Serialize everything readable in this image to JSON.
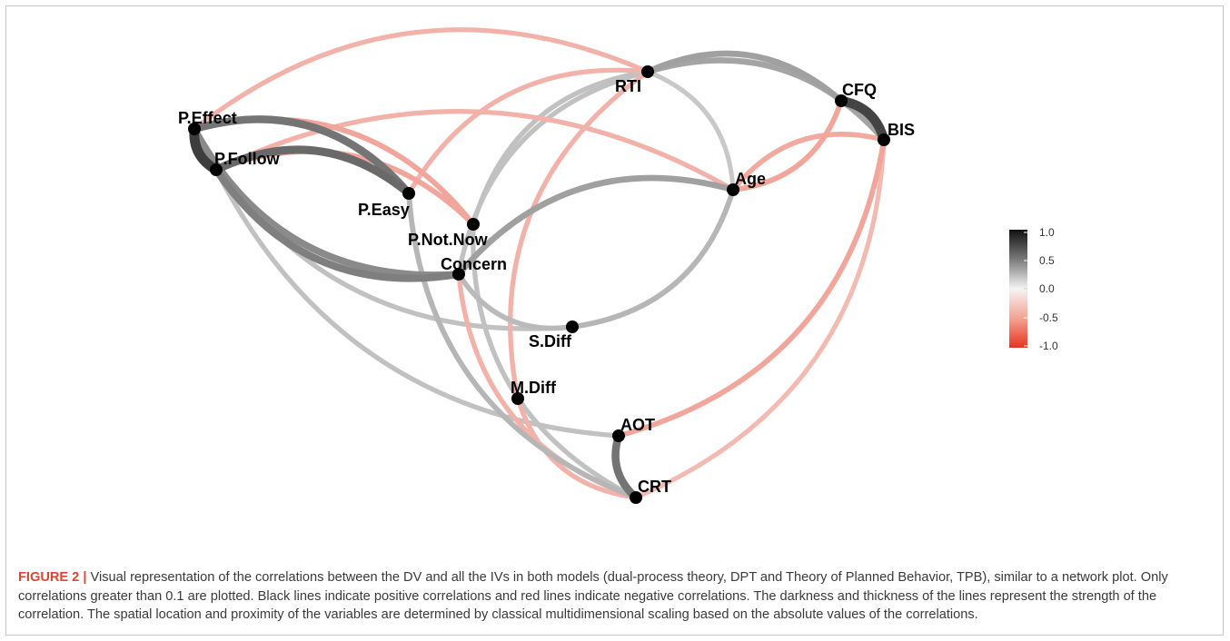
{
  "figure": {
    "label": "FIGURE 2",
    "separator": "|",
    "caption": "Visual representation of the correlations between the DV and all the IVs in both models (dual-process theory, DPT and Theory of Planned Behavior, TPB), similar to a network plot. Only correlations greater than 0.1 are plotted. Black lines indicate positive correlations and red lines indicate negative correlations. The darkness and thickness of the lines represent the strength of the correlation. The spatial location and proximity of the variables are determined by classical multidimensional scaling based on the absolute values of the correlations."
  },
  "nodes": [
    {
      "id": "P.Effect",
      "label": "P.Effect"
    },
    {
      "id": "P.Follow",
      "label": "P.Follow"
    },
    {
      "id": "P.Easy",
      "label": "P.Easy"
    },
    {
      "id": "P.Not.Now",
      "label": "P.Not.Now"
    },
    {
      "id": "Concern",
      "label": "Concern"
    },
    {
      "id": "S.Diff",
      "label": "S.Diff"
    },
    {
      "id": "M.Diff",
      "label": "M.Diff"
    },
    {
      "id": "AOT",
      "label": "AOT"
    },
    {
      "id": "CRT",
      "label": "CRT"
    },
    {
      "id": "RTI",
      "label": "RTI"
    },
    {
      "id": "CFQ",
      "label": "CFQ"
    },
    {
      "id": "BIS",
      "label": "BIS"
    },
    {
      "id": "Age",
      "label": "Age"
    }
  ],
  "edges": [
    {
      "a": "P.Effect",
      "b": "P.Follow",
      "r": 0.75
    },
    {
      "a": "CFQ",
      "b": "BIS",
      "r": 0.72
    },
    {
      "a": "AOT",
      "b": "CRT",
      "r": 0.5
    },
    {
      "a": "P.Effect",
      "b": "P.Easy",
      "r": 0.5
    },
    {
      "a": "P.Follow",
      "b": "P.Easy",
      "r": 0.55
    },
    {
      "a": "P.Effect",
      "b": "Concern",
      "r": 0.4
    },
    {
      "a": "P.Follow",
      "b": "Concern",
      "r": 0.45
    },
    {
      "a": "RTI",
      "b": "CFQ",
      "r": 0.3
    },
    {
      "a": "RTI",
      "b": "BIS",
      "r": 0.28
    },
    {
      "a": "Concern",
      "b": "Age",
      "r": 0.3
    },
    {
      "a": "S.Diff",
      "b": "Age",
      "r": 0.2
    },
    {
      "a": "P.Easy",
      "b": "CRT",
      "r": 0.2
    },
    {
      "a": "P.Follow",
      "b": "AOT",
      "r": 0.15
    },
    {
      "a": "P.Effect",
      "b": "S.Diff",
      "r": 0.15
    },
    {
      "a": "Concern",
      "b": "S.Diff",
      "r": 0.18
    },
    {
      "a": "Concern",
      "b": "RTI",
      "r": 0.15
    },
    {
      "a": "P.Not.Now",
      "b": "RTI",
      "r": 0.15
    },
    {
      "a": "P.Not.Now",
      "b": "CRT",
      "r": 0.15
    },
    {
      "a": "RTI",
      "b": "Age",
      "r": 0.12
    },
    {
      "a": "P.Effect",
      "b": "P.Not.Now",
      "r": -0.2
    },
    {
      "a": "P.Follow",
      "b": "P.Not.Now",
      "r": -0.2
    },
    {
      "a": "P.Effect",
      "b": "RTI",
      "r": -0.15
    },
    {
      "a": "P.Easy",
      "b": "RTI",
      "r": -0.15
    },
    {
      "a": "P.Follow",
      "b": "Age",
      "r": -0.15
    },
    {
      "a": "CFQ",
      "b": "Age",
      "r": -0.2
    },
    {
      "a": "BIS",
      "b": "Age",
      "r": -0.18
    },
    {
      "a": "RTI",
      "b": "M.Diff",
      "r": -0.15
    },
    {
      "a": "BIS",
      "b": "AOT",
      "r": -0.2
    },
    {
      "a": "BIS",
      "b": "CRT",
      "r": -0.12
    },
    {
      "a": "Concern",
      "b": "CRT",
      "r": -0.15
    },
    {
      "a": "M.Diff",
      "b": "CRT",
      "r": -0.15
    }
  ],
  "legend": {
    "ticks": [
      "1.0",
      "0.5",
      "0.0",
      "-0.5",
      "-1.0"
    ],
    "colors": {
      "pos": "#1a1a1a",
      "zero": "#ffffff",
      "neg": "#e8331f"
    }
  },
  "colors": {
    "accent": "#e5412d",
    "node": "#000000"
  }
}
